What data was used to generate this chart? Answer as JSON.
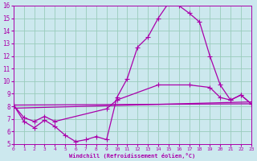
{
  "background_color": "#cce8ee",
  "line_color": "#aa00aa",
  "grid_color": "#99ccbb",
  "xlabel": "Windchill (Refroidissement éolien,°C)",
  "xlim": [
    0,
    23
  ],
  "ylim": [
    5,
    16
  ],
  "xticks": [
    0,
    1,
    2,
    3,
    4,
    5,
    6,
    7,
    8,
    9,
    10,
    11,
    12,
    13,
    14,
    15,
    16,
    17,
    18,
    19,
    20,
    21,
    22,
    23
  ],
  "yticks": [
    5,
    6,
    7,
    8,
    9,
    10,
    11,
    12,
    13,
    14,
    15,
    16
  ],
  "line1_x": [
    0,
    1,
    2,
    3,
    4,
    5,
    6,
    7,
    8,
    9,
    10,
    11,
    12,
    13,
    14,
    15,
    16,
    17,
    18,
    19,
    20,
    21,
    22,
    23
  ],
  "line1_y": [
    8.1,
    6.8,
    6.3,
    6.9,
    6.4,
    5.7,
    5.2,
    5.35,
    5.6,
    5.35,
    8.7,
    10.2,
    12.7,
    13.5,
    15.0,
    16.2,
    16.0,
    15.4,
    14.7,
    12.0,
    9.7,
    8.5,
    8.9,
    8.2
  ],
  "line2_x": [
    0,
    23
  ],
  "line2_y": [
    8.1,
    8.2
  ],
  "line3_x": [
    0,
    23
  ],
  "line3_y": [
    7.85,
    8.35
  ],
  "line4_x": [
    0,
    1,
    2,
    3,
    4,
    9,
    10,
    14,
    17,
    19,
    20,
    21,
    22,
    23
  ],
  "line4_y": [
    8.1,
    7.1,
    6.8,
    7.2,
    6.8,
    7.8,
    8.5,
    9.7,
    9.7,
    9.5,
    8.7,
    8.5,
    8.9,
    8.2
  ],
  "marker": "+",
  "markersize": 4,
  "linewidth": 0.9
}
